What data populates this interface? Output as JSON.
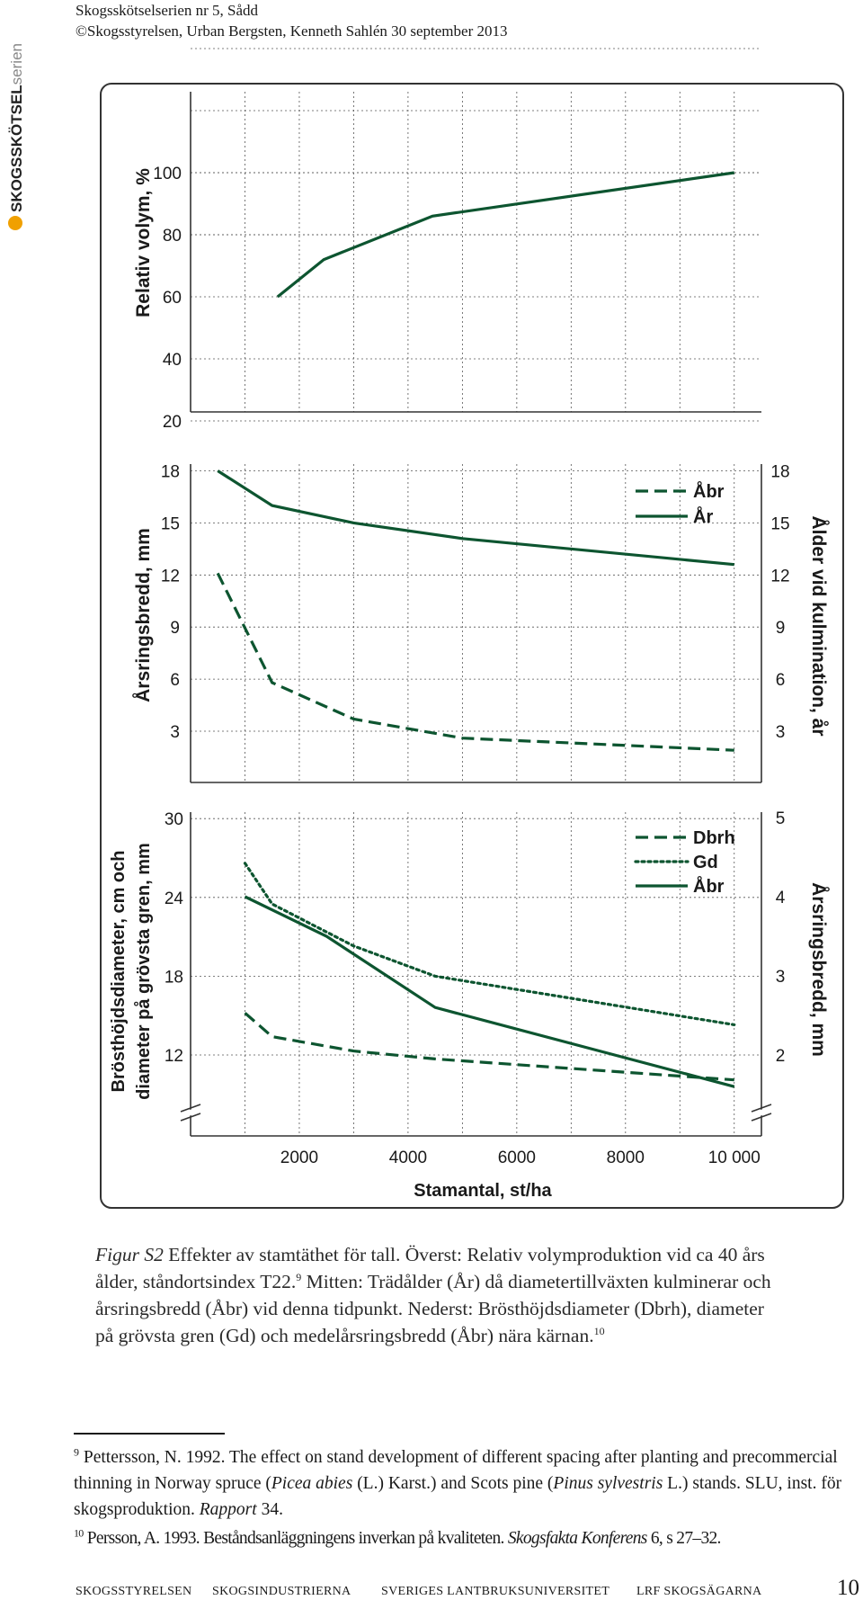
{
  "header": {
    "line1": "Skogsskötselserien nr 5, Sådd",
    "line2": "©Skogsstyrelsen, Urban Bergsten, Kenneth Sahlén 30 september 2013"
  },
  "brand": {
    "bold": "SKOGSSKÖTSEL",
    "light": "serien",
    "color": "#f0a000"
  },
  "chart_data": [
    {
      "type": "line",
      "ylabel": "Relativ volym, %",
      "yticks": [
        20,
        40,
        60,
        80,
        100
      ],
      "ylim": [
        10,
        105
      ],
      "xlim": [
        0,
        10500
      ],
      "series": [
        {
          "name": "",
          "style": "solid",
          "x": [
            1600,
            2450,
            4450,
            10000
          ],
          "y": [
            60,
            72,
            86,
            100
          ]
        }
      ]
    },
    {
      "type": "line",
      "ylabel_left": "Årsringsbredd, mm",
      "ylabel_right": "Ålder vid kulmination, år",
      "yticks_left": [
        3,
        6,
        9,
        12,
        15,
        18
      ],
      "yticks_right": [
        3,
        6,
        9,
        12,
        15,
        18
      ],
      "ylim": [
        2,
        18.2
      ],
      "xlim": [
        0,
        10500
      ],
      "legend": [
        "Åbr",
        "År"
      ],
      "legend_position": "top-right",
      "series": [
        {
          "name": "Åbr",
          "axis": "left",
          "style": "dashed",
          "x": [
            500,
            1500,
            3000,
            5000,
            10000
          ],
          "y": [
            12.1,
            5.8,
            3.7,
            2.6,
            1.9
          ]
        },
        {
          "name": "År",
          "axis": "right",
          "style": "solid",
          "x": [
            500,
            1500,
            3000,
            5000,
            10000
          ],
          "y": [
            18,
            16,
            15,
            14.1,
            12.6
          ]
        }
      ]
    },
    {
      "type": "line",
      "ylabel_left": "Brösthöjdsdiameter, cm och diameter på grövsta gren, mm",
      "ylabel_right": "Årsringsbredd, mm",
      "yticks_left": [
        12,
        18,
        24,
        30
      ],
      "yticks_right": [
        2,
        3,
        4,
        5
      ],
      "ylim_left": [
        6,
        30.8
      ],
      "ylim_right": [
        1.2,
        5.1
      ],
      "xlim": [
        0,
        10500
      ],
      "xticks": [
        2000,
        4000,
        6000,
        8000,
        10000
      ],
      "xtick_labels": [
        "2000",
        "4000",
        "6000",
        "8000",
        "10 000"
      ],
      "xlabel": "Stamantal, st/ha",
      "legend": [
        "Dbrh",
        "Gd",
        "Åbr"
      ],
      "legend_position": "top-right",
      "series": [
        {
          "name": "Dbrh",
          "axis": "left",
          "style": "dashed",
          "x": [
            1000,
            1500,
            3000,
            4500,
            10000
          ],
          "y": [
            15.2,
            13.4,
            12.3,
            11.7,
            10.1
          ]
        },
        {
          "name": "Gd",
          "axis": "left",
          "style": "dotted",
          "x": [
            1000,
            1500,
            3000,
            4500,
            10000
          ],
          "y": [
            26.6,
            23.5,
            20.3,
            18,
            14.3
          ]
        },
        {
          "name": "Åbr",
          "axis": "right",
          "style": "solid",
          "x": [
            1000,
            2500,
            4500,
            10000
          ],
          "y": [
            4,
            3.5,
            2.6,
            1.6
          ]
        }
      ]
    }
  ],
  "caption": {
    "label": "Figur S2",
    "part1": " Effekter av stamtäthet för tall. Överst: Relativ volymproduktion vid ca 40 års ålder, ståndortsindex T22.",
    "ref1": "9",
    "part2": " Mitten: Trädålder (År) då diametertillväxten kulminerar och årsringsbredd (Åbr) vid denna tidpunkt. Nederst: Brösthöjdsdiameter (Dbrh), diameter på grövsta gren (Gd) och medelårsringsbredd (Åbr) nära kärnan.",
    "ref2": "10"
  },
  "footnotes": {
    "fn9_num": "9",
    "fn9_a": " Pettersson, N. 1992. The effect on stand development of different spacing after planting and precommercial thinning in Norway spruce (",
    "fn9_i1": "Picea abies",
    "fn9_b": " (L.) Karst.) and Scots pine (",
    "fn9_i2": "Pinus sylvestris",
    "fn9_c": " L.) stands. SLU, inst. för skogsproduktion. ",
    "fn9_i3": "Rapport",
    "fn9_d": " 34.",
    "fn10_num": "10",
    "fn10_a": " Persson, A. 1993. Beståndsanläggningens inverkan på kvaliteten. ",
    "fn10_i1": "Skogsfakta Konferens",
    "fn10_b": " 6, s 27–32."
  },
  "footer": {
    "items": [
      "SKOGSSTYRELSEN",
      "SKOGSINDUSTRIERNA",
      "SVERIGES LANTBRUKSUNIVERSITET",
      "LRF SKOGSÄGARNA"
    ],
    "page": "10"
  },
  "colors": {
    "series": "#0d5530",
    "grid": "#555555",
    "frame": "#333333",
    "text": "#1a1a1a"
  }
}
